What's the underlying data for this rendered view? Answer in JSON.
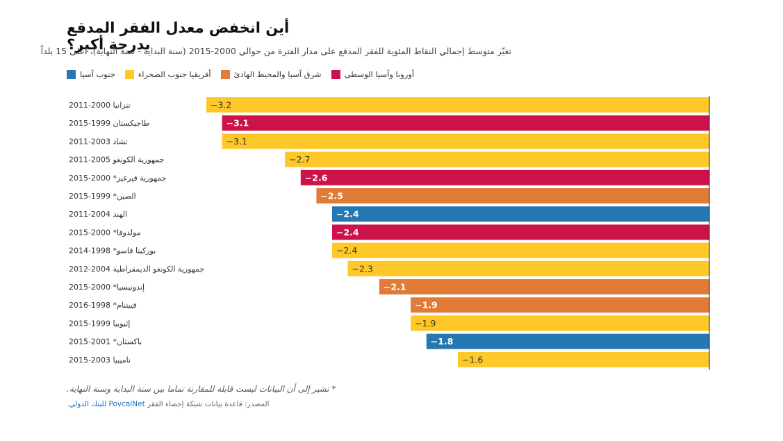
{
  "title": "أين انخفض معدل الفقر المدقع بدرجة أكبر؟",
  "subtitle": "تغيّر متوسط إجمالي النقاط المئوية للفقر المدقع على مدار الفترة من حوالي 2000-2015 (سنة البداية - سنة النهاية)، أعلى 15 بلداً",
  "legend": [
    {
      "label": "جنوب آسيا",
      "color": "#2678b2"
    },
    {
      "label": "أفريقيا جنوب الصحراء",
      "color": "#fdc828"
    },
    {
      "label": "شرق آسيا والمحيط الهادئ",
      "color": "#e07c37"
    },
    {
      "label": "أوروبا وآسيا الوسطى",
      "color": "#cc1349"
    }
  ],
  "chart_data": {
    "type": "bar",
    "orientation": "horizontal",
    "categories": [
      "تنزانيا 2000-2011",
      "طاجيكستان 1999-2015",
      "تشاد 2003-2011",
      "جمهورية الكونغو 2005-2011",
      "جمهورية قيرغيز* 2000-2015",
      "الصين* 1999-2015",
      "الهند 2004-2011",
      "مولدوفا* 2000-2015",
      "بوركينا فاسو* 1998-2014",
      "جمهورية الكونغو الديمقراطية 2004-2012",
      "إندونيسيا* 2000-2015",
      "فييتنام* 1998-2016",
      "إثيوبيا 1999-2015",
      "باكستان* 2001-2015",
      "ناميبيا 2003-2015"
    ],
    "values": [
      -3.2,
      -3.1,
      -3.1,
      -2.7,
      -2.6,
      -2.5,
      -2.4,
      -2.4,
      -2.4,
      -2.3,
      -2.1,
      -1.9,
      -1.9,
      -1.8,
      -1.6
    ],
    "value_labels": [
      "−3.2",
      "−3.1",
      "−3.1",
      "−2.7",
      "−2.6",
      "−2.5",
      "−2.4",
      "−2.4",
      "−2.4",
      "−2.3",
      "−2.1",
      "−1.9",
      "−1.9",
      "−1.8",
      "−1.6"
    ],
    "regions": [
      "أفريقيا جنوب الصحراء",
      "أوروبا وآسيا الوسطى",
      "أفريقيا جنوب الصحراء",
      "أفريقيا جنوب الصحراء",
      "أوروبا وآسيا الوسطى",
      "شرق آسيا والمحيط الهادئ",
      "جنوب آسيا",
      "أوروبا وآسيا الوسطى",
      "أفريقيا جنوب الصحراء",
      "أفريقيا جنوب الصحراء",
      "شرق آسيا والمحيط الهادئ",
      "شرق آسيا والمحيط الهادئ",
      "أفريقيا جنوب الصحراء",
      "جنوب آسيا",
      "أفريقيا جنوب الصحراء"
    ],
    "xlim": [
      -3.2,
      0
    ]
  },
  "footnote": "* تشير إلى أن البيانات ليست قابلة للمقارنة تماما بين سنة البداية وسنة النهاية.",
  "source": {
    "prefix": "المصدر: قاعدة بيانات شبكة إحصاء الفقر",
    "link": "PovcalNet",
    "suffix": "للبنك الدولي."
  }
}
